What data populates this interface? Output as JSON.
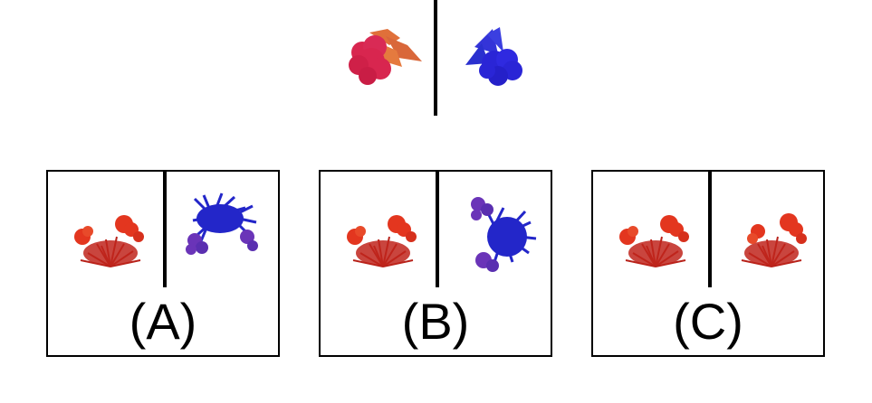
{
  "prompt": {
    "left_object": "red-pink-blob-with-orange-shards",
    "right_object": "blue-blob-with-blue-shards"
  },
  "options": [
    {
      "label": "(A)",
      "left_plant": "red-flower-bush",
      "right_plant": "blue-purple-flower-bush"
    },
    {
      "label": "(B)",
      "left_plant": "red-flower-bush",
      "right_plant": "blue-purple-flower-bush-rotated"
    },
    {
      "label": "(C)",
      "left_plant": "red-flower-bush",
      "right_plant": "red-flower-bush"
    }
  ],
  "colors": {
    "red_pink": "#d8264f",
    "orange": "#e0703a",
    "blue": "#2a25d6",
    "red_plant": "#c0251c",
    "red_flower": "#e3361f",
    "blue_plant": "#2326c9",
    "purple_flower": "#6a34b8"
  }
}
